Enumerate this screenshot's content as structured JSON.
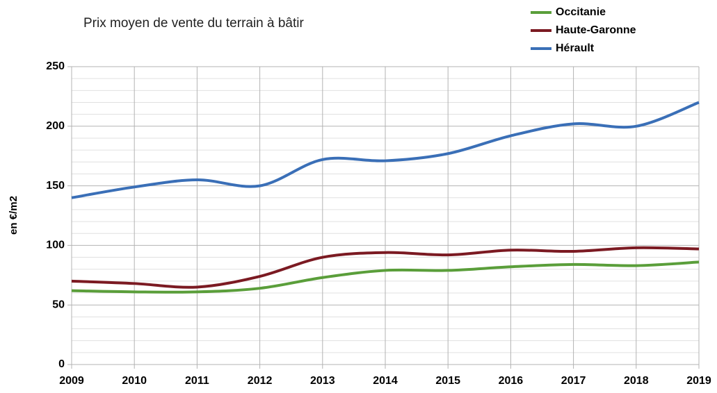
{
  "chart_data": {
    "type": "line",
    "title": "Prix moyen de vente du terrain à bâtir",
    "y_label": "en €/m2",
    "x": [
      2009,
      2010,
      2011,
      2012,
      2013,
      2014,
      2015,
      2016,
      2017,
      2018,
      2019
    ],
    "xlim": [
      2009,
      2019
    ],
    "xticks": [
      2009,
      2010,
      2011,
      2012,
      2013,
      2014,
      2015,
      2016,
      2017,
      2018,
      2019
    ],
    "ylim": [
      0,
      250
    ],
    "yticks": [
      0,
      50,
      100,
      150,
      200,
      250
    ],
    "minor_yticks": [
      10,
      20,
      30,
      40,
      60,
      70,
      80,
      90,
      110,
      120,
      130,
      140,
      160,
      170,
      180,
      190,
      210,
      220,
      230,
      240
    ],
    "grid": true,
    "smooth": true,
    "legend": "top-right",
    "series": [
      {
        "name": "Occitanie",
        "color": "#5a9e3a",
        "values": [
          62,
          61,
          61,
          64,
          73,
          79,
          79,
          82,
          84,
          83,
          86
        ]
      },
      {
        "name": "Haute-Garonne",
        "color": "#7b1a22",
        "values": [
          70,
          68,
          65,
          74,
          90,
          94,
          92,
          96,
          95,
          98,
          97
        ]
      },
      {
        "name": "Hérault",
        "color": "#3a6fb7",
        "values": [
          140,
          149,
          155,
          150,
          172,
          171,
          177,
          192,
          202,
          200,
          220
        ]
      }
    ]
  }
}
